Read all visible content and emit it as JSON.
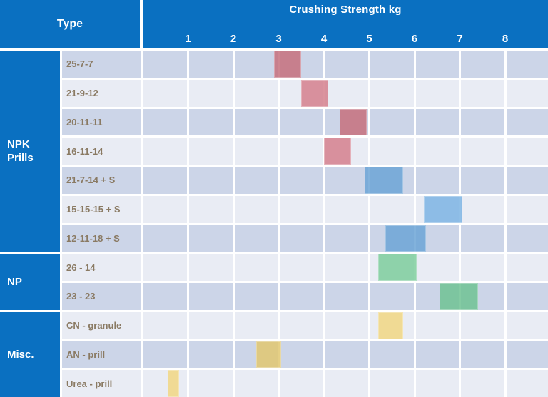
{
  "header": {
    "type_label": "Type",
    "title": "Crushing Strength kg"
  },
  "colors": {
    "header_bg": "#0a70c1",
    "row_shade_dark": "#ccd5e8",
    "row_shade_light": "#e9ecf4",
    "row_label_text": "#8a7a63",
    "grid_line": "#ffffff"
  },
  "chart_data": {
    "type": "bar",
    "subtype": "floating-range-horizontal",
    "title": "Crushing Strength kg",
    "value_axis_label": "Crushing Strength kg",
    "value_unit": "kg",
    "xlim": [
      0,
      8.9
    ],
    "x_ticks": [
      1,
      2,
      3,
      4,
      5,
      6,
      7,
      8
    ],
    "grid": true,
    "legend": false,
    "groups": [
      {
        "label": "NPK Prills",
        "row_count": 7
      },
      {
        "label": "NP",
        "row_count": 2
      },
      {
        "label": "Misc.",
        "row_count": 3
      }
    ],
    "rows": [
      {
        "group": "NPK Prills",
        "label": "25-7-7",
        "range_kg": [
          2.9,
          3.5
        ],
        "color": "#c5707d"
      },
      {
        "group": "NPK Prills",
        "label": "21-9-12",
        "range_kg": [
          3.5,
          4.1
        ],
        "color": "#d5808d"
      },
      {
        "group": "NPK Prills",
        "label": "20-11-11",
        "range_kg": [
          4.35,
          4.95
        ],
        "color": "#c5707d"
      },
      {
        "group": "NPK Prills",
        "label": "16-11-14",
        "range_kg": [
          4.0,
          4.6
        ],
        "color": "#d5808d"
      },
      {
        "group": "NPK Prills",
        "label": "21-7-14 + S",
        "range_kg": [
          4.9,
          5.75
        ],
        "color": "#6ca5d6"
      },
      {
        "group": "NPK Prills",
        "label": "15-15-15 + S",
        "range_kg": [
          6.2,
          7.05
        ],
        "color": "#7cb4e3"
      },
      {
        "group": "NPK Prills",
        "label": "12-11-18 + S",
        "range_kg": [
          5.35,
          6.25
        ],
        "color": "#6ca5d6"
      },
      {
        "group": "NP",
        "label": "26 - 14",
        "range_kg": [
          5.2,
          6.05
        ],
        "color": "#7ece9c"
      },
      {
        "group": "NP",
        "label": "23 - 23",
        "range_kg": [
          6.55,
          7.4
        ],
        "color": "#6ec293"
      },
      {
        "group": "Misc.",
        "label": "CN - granule",
        "range_kg": [
          5.2,
          5.75
        ],
        "color": "#f1d782"
      },
      {
        "group": "Misc.",
        "label": "AN - prill",
        "range_kg": [
          2.5,
          3.05
        ],
        "color": "#e0c770"
      },
      {
        "group": "Misc.",
        "label": "Urea - prill",
        "range_kg": [
          0.55,
          0.8
        ],
        "color": "#f1d782"
      }
    ]
  }
}
